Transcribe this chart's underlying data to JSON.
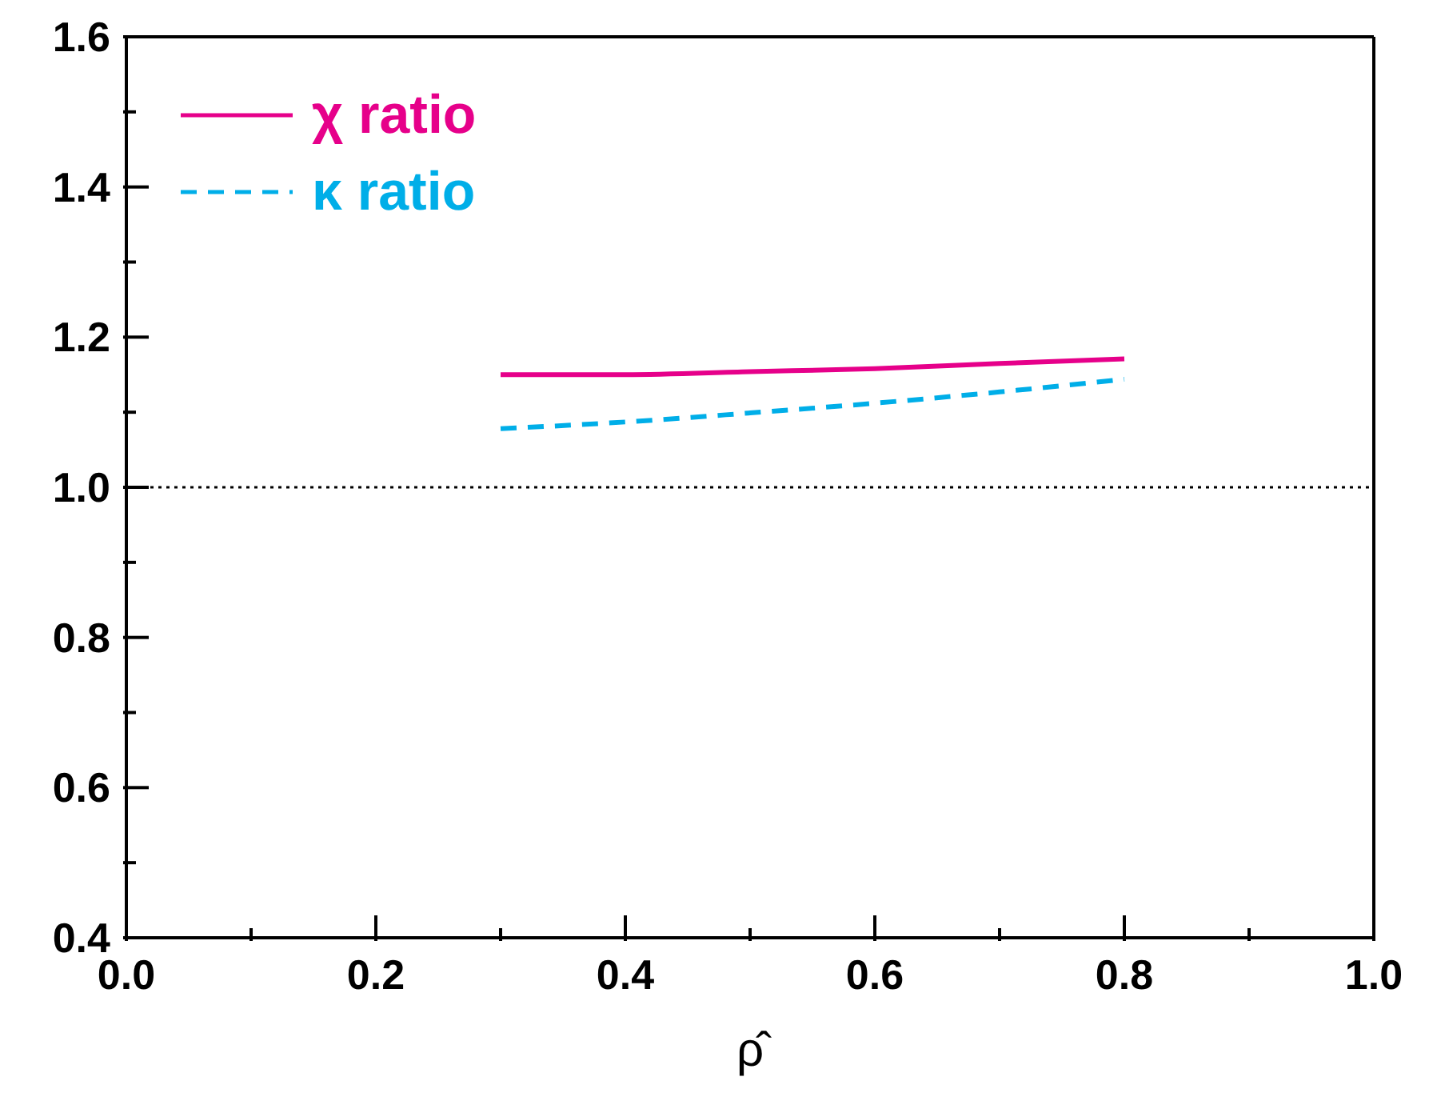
{
  "chart_data": {
    "type": "line",
    "xlabel": "ρ̂",
    "x": [
      0.3,
      0.4,
      0.5,
      0.6,
      0.7,
      0.8
    ],
    "series": [
      {
        "name": "χ ratio",
        "color": "#e6008a",
        "values": [
          1.15,
          1.15,
          1.154,
          1.158,
          1.165,
          1.171
        ],
        "line_style": "solid"
      },
      {
        "name": "κ ratio",
        "color": "#00aee8",
        "values": [
          1.078,
          1.087,
          1.099,
          1.112,
          1.127,
          1.144
        ],
        "line_style": "dashed"
      }
    ],
    "xlim": [
      0,
      1
    ],
    "xticks": [
      {
        "value": 0,
        "label": "0.0"
      },
      {
        "value": 0.1,
        "label": null
      },
      {
        "value": 0.2,
        "label": "0.2"
      },
      {
        "value": 0.3,
        "label": null
      },
      {
        "value": 0.4,
        "label": "0.4"
      },
      {
        "value": 0.5,
        "label": null
      },
      {
        "value": 0.6,
        "label": "0.6"
      },
      {
        "value": 0.7,
        "label": null
      },
      {
        "value": 0.8,
        "label": "0.8"
      },
      {
        "value": 0.9,
        "label": null
      },
      {
        "value": 1,
        "label": "1.0"
      }
    ],
    "ylim": [
      0.4,
      1.6
    ],
    "yticks": [
      {
        "value": 0.4,
        "label": "0.4"
      },
      {
        "value": 0.5,
        "label": null
      },
      {
        "value": 0.6,
        "label": "0.6"
      },
      {
        "value": 0.7,
        "label": null
      },
      {
        "value": 0.8,
        "label": "0.8"
      },
      {
        "value": 0.9,
        "label": null
      },
      {
        "value": 1,
        "label": "1.0"
      },
      {
        "value": 1.1,
        "label": null
      },
      {
        "value": 1.2,
        "label": "1.2"
      },
      {
        "value": 1.3,
        "label": null
      },
      {
        "value": 1.4,
        "label": "1.4"
      },
      {
        "value": 1.5,
        "label": null
      },
      {
        "value": 1.6,
        "label": "1.6"
      }
    ],
    "ref_lines": [
      {
        "axis": "y",
        "value": 1,
        "color": "#000000",
        "line_style": "dotted"
      }
    ],
    "grid": false,
    "legend": "top left",
    "marker": "none"
  }
}
